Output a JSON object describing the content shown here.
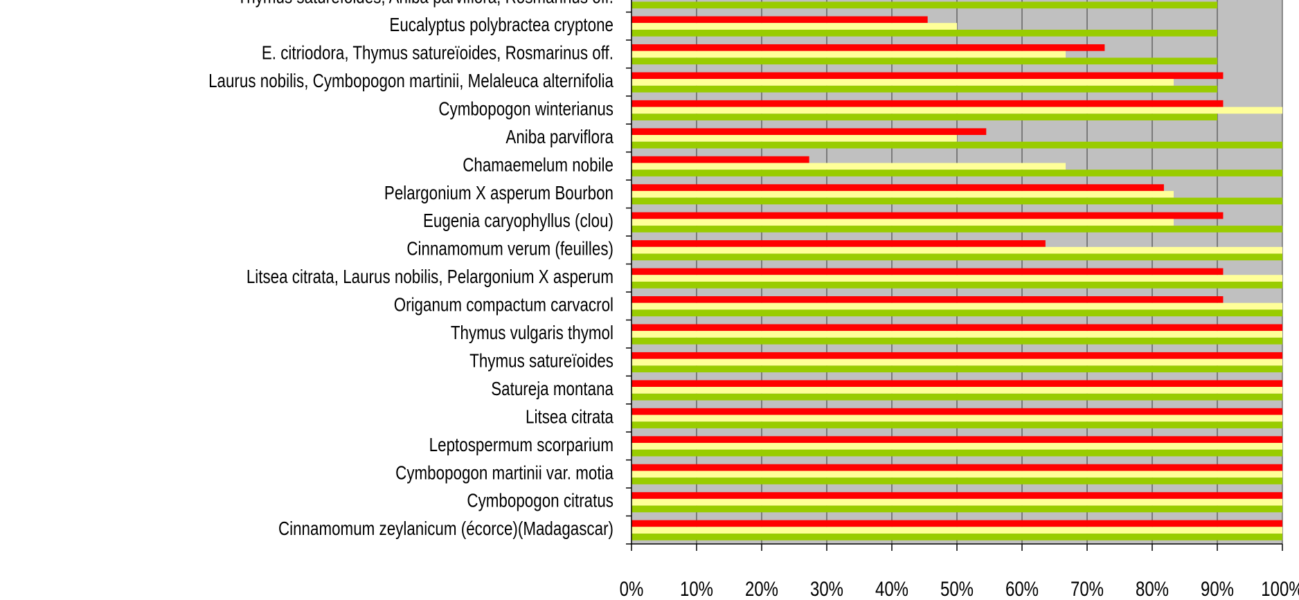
{
  "chart_data": {
    "type": "bar",
    "orientation": "horizontal",
    "categories": [
      "Thymus satureïoides, Aniba parviflora, Rosmarinus off.",
      "Eucalyptus polybractea cryptone",
      "E. citriodora, Thymus satureïoides, Rosmarinus off.",
      "Laurus nobilis, Cymbopogon martinii, Melaleuca alternifolia",
      "Cymbopogon winterianus",
      "Aniba parviflora",
      "Chamaemelum nobile",
      "Pelargonium X asperum Bourbon",
      "Eugenia caryophyllus (clou)",
      "Cinnamomum verum (feuilles)",
      "Litsea citrata, Laurus nobilis, Pelargonium X asperum",
      "Origanum compactum carvacrol",
      "Thymus vulgaris thymol",
      "Thymus satureïoides",
      "Satureja montana",
      "Litsea citrata",
      "Leptospermum scorparium",
      "Cymbopogon martinii var. motia",
      "Cymbopogon citratus",
      "Cinnamomum zeylanicum (écorce)(Madagascar)"
    ],
    "series": [
      {
        "color": "#ff0000",
        "values": [
          null,
          45.5,
          72.7,
          90.9,
          90.9,
          54.5,
          27.3,
          81.8,
          90.9,
          63.6,
          90.9,
          90.9,
          100,
          100,
          100,
          100,
          100,
          100,
          100,
          100
        ]
      },
      {
        "color": "#ffff99",
        "values": [
          null,
          50,
          66.7,
          83.3,
          100,
          50,
          66.7,
          83.3,
          83.3,
          100,
          100,
          100,
          100,
          100,
          100,
          100,
          100,
          100,
          100,
          100
        ]
      },
      {
        "color": "#99cc00",
        "values": [
          90,
          90,
          90,
          90,
          90,
          100,
          100,
          100,
          100,
          100,
          100,
          100,
          100,
          100,
          100,
          100,
          100,
          100,
          100,
          100
        ]
      }
    ],
    "xlim": [
      0,
      100
    ],
    "xticks": [
      {
        "value": 0,
        "label": "0%"
      },
      {
        "value": 10,
        "label": "10%"
      },
      {
        "value": 20,
        "label": "20%"
      },
      {
        "value": 30,
        "label": "30%"
      },
      {
        "value": 40,
        "label": "40%"
      },
      {
        "value": 50,
        "label": "50%"
      },
      {
        "value": 60,
        "label": "60%"
      },
      {
        "value": 70,
        "label": "70%"
      },
      {
        "value": 80,
        "label": "80%"
      },
      {
        "value": 90,
        "label": "90%"
      },
      {
        "value": 100,
        "label": "100%"
      }
    ],
    "grid": true,
    "plot_background": "#c0c0c0"
  }
}
